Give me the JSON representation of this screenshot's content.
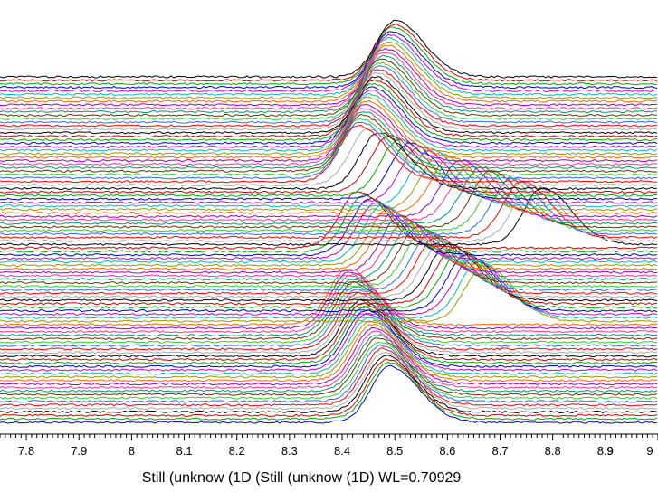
{
  "chart_data": {
    "type": "line",
    "subtype": "stacked waterfall of 1D diffraction patterns",
    "title": "",
    "xlabel": "Still (unknow (1D (Still (unknow (1D) WL=0.70929",
    "ylabel": "",
    "xlim": [
      7.75,
      9.0
    ],
    "x_ticks": [
      "7.8",
      "7.9",
      "8",
      "8.1",
      "8.2",
      "8.3",
      "8.4",
      "8.5",
      "8.6",
      "8.7",
      "8.8",
      "8.9",
      "9",
      "9"
    ],
    "grid": false,
    "legend": "none",
    "series_count": 100,
    "series_colors": [
      "#000000",
      "#cc0000",
      "#00aa00",
      "#0000cc",
      "#cc00cc",
      "#00bbbb",
      "#999900",
      "#ff6600",
      "#9900cc",
      "#ff3399",
      "#009966",
      "#663300",
      "#33cc33",
      "#3366ff",
      "#ff0000",
      "#aaaaaa"
    ],
    "segments": [
      {
        "rows_from_top": [
          0,
          30
        ],
        "peak_position": 8.5,
        "shift": "peak moves from 8.50 to 8.43 going down the stack"
      },
      {
        "rows_from_top": [
          31,
          48
        ],
        "peak_position": 8.45,
        "shift": "peak moves from 8.45 to 8.78 going down the stack"
      },
      {
        "rows_from_top": [
          49,
          70
        ],
        "peak_position": 8.43,
        "shift": "peak moves from 8.43 to 8.67 going down the stack"
      },
      {
        "rows_from_top": [
          71,
          99
        ],
        "peak_position": 8.41,
        "shift": "peak moves from 8.41 to 8.49 going down the stack"
      }
    ]
  }
}
